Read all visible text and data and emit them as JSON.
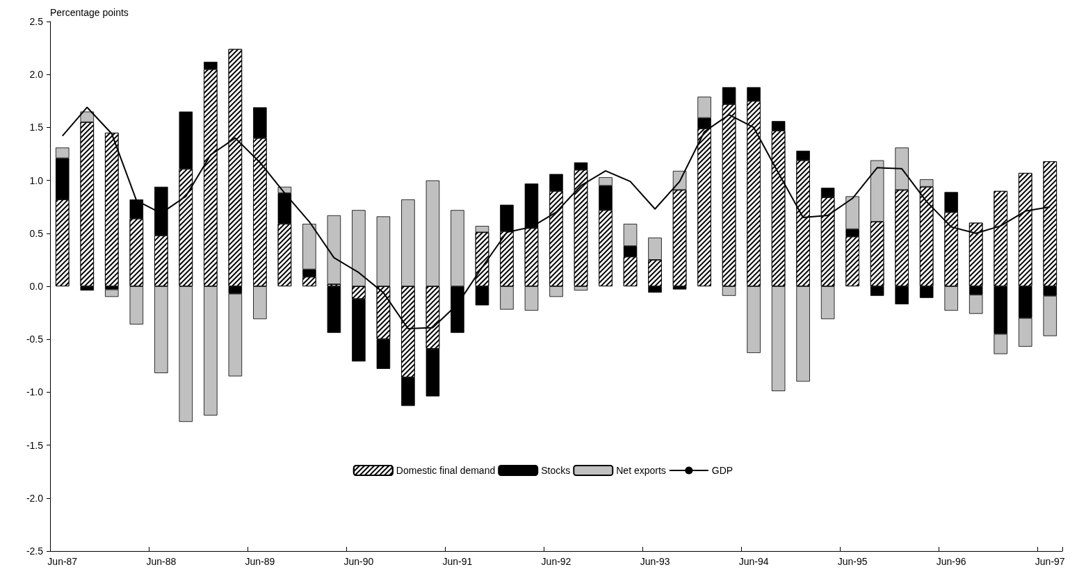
{
  "chart_data": {
    "type": "bar",
    "stacked": true,
    "ylabel": "Percentage points",
    "categories": [
      "Jun-87",
      null,
      null,
      null,
      "Jun-88",
      null,
      null,
      null,
      "Jun-89",
      null,
      null,
      null,
      "Jun-90",
      null,
      null,
      null,
      "Jun-91",
      null,
      null,
      null,
      "Jun-92",
      null,
      null,
      null,
      "Jun-93",
      null,
      null,
      null,
      "Jun-94",
      null,
      null,
      null,
      "Jun-95",
      null,
      null,
      null,
      "Jun-96",
      null,
      null,
      null,
      "Jun-97"
    ],
    "series": [
      {
        "name": "Domestic final demand",
        "color": "#ffffff",
        "values": [
          0.82,
          1.55,
          1.45,
          0.64,
          0.48,
          1.11,
          2.05,
          2.24,
          1.4,
          0.59,
          0.09,
          0.02,
          -0.12,
          -0.5,
          -0.86,
          -0.59,
          null,
          0.51,
          0.52,
          0.55,
          0.9,
          1.1,
          0.72,
          0.28,
          0.25,
          0.91,
          1.49,
          1.72,
          1.75,
          1.47,
          1.19,
          0.84,
          0.47,
          0.61,
          0.91,
          0.94,
          0.7,
          0.6,
          0.9,
          1.07,
          1.18
        ]
      },
      {
        "name": "Stocks",
        "color": "#000000",
        "values": [
          0.39,
          -0.04,
          -0.03,
          0.18,
          0.46,
          0.54,
          0.07,
          -0.07,
          0.29,
          0.29,
          0.07,
          -0.44,
          -0.59,
          -0.28,
          -0.27,
          -0.45,
          -0.44,
          -0.18,
          0.25,
          0.42,
          0.16,
          0.07,
          0.23,
          0.1,
          -0.06,
          -0.03,
          0.1,
          0.16,
          0.13,
          0.09,
          0.09,
          0.09,
          0.07,
          -0.09,
          -0.17,
          -0.11,
          0.19,
          -0.08,
          -0.45,
          -0.3,
          -0.09
        ]
      },
      {
        "name": "Net exports",
        "color": "#c0c0c0",
        "values": [
          0.1,
          0.1,
          -0.07,
          -0.36,
          -0.82,
          -1.28,
          -1.22,
          -0.78,
          -0.31,
          0.06,
          0.43,
          0.65,
          0.72,
          0.66,
          0.82,
          1.0,
          0.72,
          0.06,
          -0.22,
          -0.23,
          -0.1,
          -0.04,
          0.08,
          0.21,
          0.21,
          0.18,
          0.2,
          -0.09,
          -0.63,
          -0.99,
          -0.9,
          -0.31,
          0.31,
          0.58,
          0.4,
          0.07,
          -0.23,
          -0.18,
          -0.19,
          -0.27,
          -0.38
        ]
      },
      {
        "name": "GDP",
        "type": "line",
        "color": "#000000",
        "values": [
          1.42,
          1.69,
          1.44,
          0.81,
          0.69,
          0.85,
          1.24,
          1.4,
          1.17,
          0.88,
          0.61,
          0.27,
          0.13,
          -0.06,
          -0.4,
          -0.39,
          -0.17,
          0.18,
          0.51,
          0.56,
          0.7,
          0.95,
          1.09,
          0.99,
          0.73,
          0.99,
          1.46,
          1.62,
          1.5,
          1.07,
          0.65,
          0.67,
          0.83,
          1.12,
          1.11,
          0.8,
          0.56,
          0.5,
          0.57,
          0.71,
          0.75
        ]
      }
    ],
    "ylim": [
      -2.5,
      2.5
    ],
    "yticks": [
      {
        "value": -2.5,
        "label": "-2.5"
      },
      {
        "value": -2,
        "label": "-2.0"
      },
      {
        "value": -1.5,
        "label": "-1.5"
      },
      {
        "value": -1,
        "label": "-1.0"
      },
      {
        "value": -0.5,
        "label": "-0.5"
      },
      {
        "value": 0,
        "label": "0.0"
      },
      {
        "value": 0.5,
        "label": "0.5"
      },
      {
        "value": 1,
        "label": "1.0"
      },
      {
        "value": 1.5,
        "label": "1.5"
      },
      {
        "value": 2,
        "label": "2.0"
      },
      {
        "value": 2.5,
        "label": "2.5"
      }
    ],
    "grid": false,
    "legend": "bottom",
    "marker": "none",
    "line_style": "solid"
  }
}
